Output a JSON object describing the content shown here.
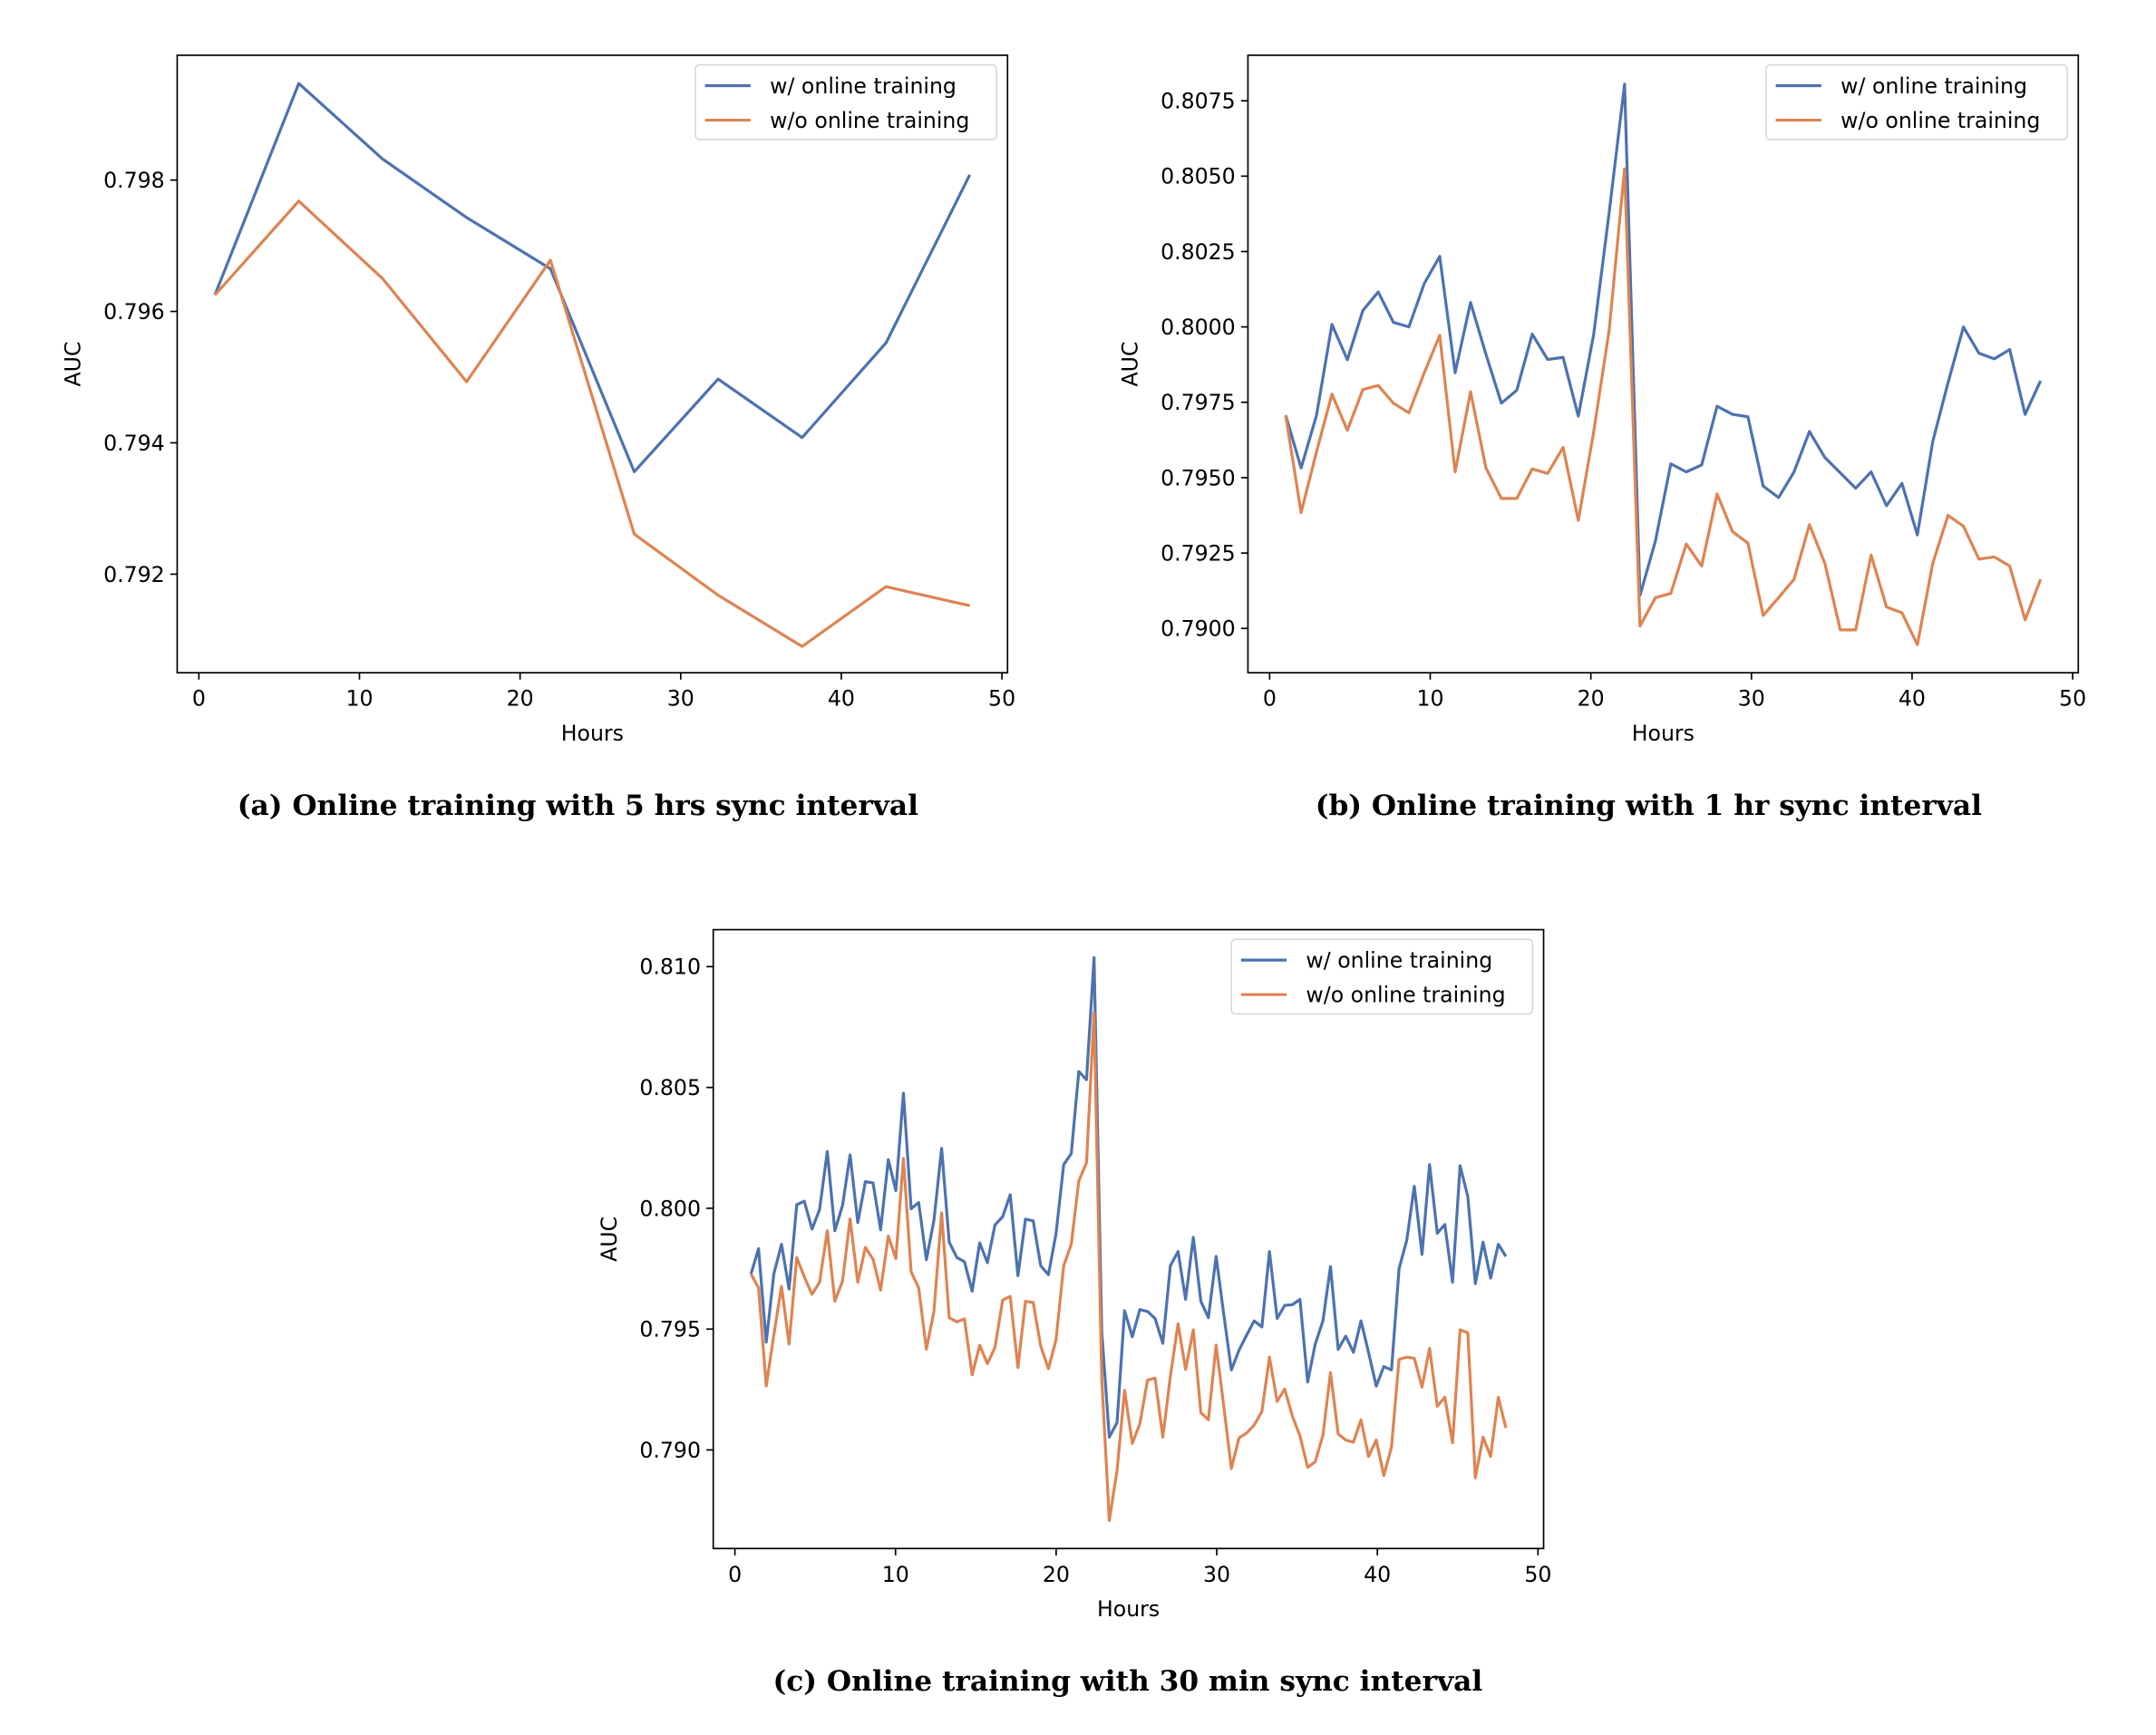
{
  "colors": {
    "w_online": "#4c72b0",
    "wo_online": "#dd8452"
  },
  "chart_data": [
    {
      "type": "line",
      "caption": "(a) Online training with 5 hrs sync interval",
      "xlabel": "Hours",
      "ylabel": "AUC",
      "xlim": [
        -1.35,
        50.35
      ],
      "ylim": [
        0.7905,
        0.7999
      ],
      "xticks": [
        "0",
        "10",
        "20",
        "30",
        "40",
        "50"
      ],
      "xtick_values": [
        0,
        10,
        20,
        30,
        40,
        50
      ],
      "yticks": [
        "0.792",
        "0.794",
        "0.796",
        "0.798"
      ],
      "ytick_values": [
        0.792,
        0.794,
        0.796,
        0.798
      ],
      "legend_position": "top-right",
      "grid": false,
      "x": [
        1,
        6.22,
        11.44,
        16.67,
        21.89,
        27.11,
        32.33,
        37.56,
        42.78,
        48
      ],
      "series": [
        {
          "name": "w/ online training",
          "color": "#4c72b0",
          "values": [
            0.79625,
            0.79947,
            0.79832,
            0.79743,
            0.79665,
            0.79356,
            0.79497,
            0.79408,
            0.79552,
            0.79808
          ]
        },
        {
          "name": "w/o online training",
          "color": "#dd8452",
          "values": [
            0.79625,
            0.79768,
            0.7965,
            0.79493,
            0.79678,
            0.79261,
            0.79168,
            0.7909,
            0.79181,
            0.79152
          ]
        }
      ]
    },
    {
      "type": "line",
      "caption": "(b) Online training with 1 hr sync interval",
      "xlabel": "Hours",
      "ylabel": "AUC",
      "xlim": [
        -1.35,
        50.35
      ],
      "ylim": [
        0.78853,
        0.80901
      ],
      "xticks": [
        "0",
        "10",
        "20",
        "30",
        "40",
        "50"
      ],
      "xtick_values": [
        0,
        10,
        20,
        30,
        40,
        50
      ],
      "yticks": [
        "0.7900",
        "0.7925",
        "0.7950",
        "0.7975",
        "0.8000",
        "0.8025",
        "0.8050",
        "0.8075"
      ],
      "ytick_values": [
        0.79,
        0.7925,
        0.795,
        0.7975,
        0.8,
        0.8025,
        0.805,
        0.8075
      ],
      "legend_position": "top-right",
      "grid": false,
      "x": [
        1,
        1.96,
        2.92,
        3.88,
        4.84,
        5.8,
        6.76,
        7.71,
        8.67,
        9.63,
        10.59,
        11.55,
        12.51,
        13.47,
        14.43,
        15.39,
        16.35,
        17.31,
        18.27,
        19.22,
        20.18,
        21.14,
        22.1,
        23.06,
        24.02,
        24.98,
        25.94,
        26.9,
        27.86,
        28.82,
        29.78,
        30.73,
        31.69,
        32.65,
        33.61,
        34.57,
        35.53,
        36.49,
        37.45,
        38.41,
        39.37,
        40.33,
        41.29,
        42.24,
        43.2,
        44.16,
        45.12,
        46.08,
        47.04,
        48
      ],
      "series": [
        {
          "name": "w/ online training",
          "color": "#4c72b0",
          "values": [
            0.79707,
            0.79532,
            0.79707,
            0.80008,
            0.79891,
            0.80054,
            0.80116,
            0.80015,
            0.8,
            0.80144,
            0.80234,
            0.79848,
            0.80081,
            0.79909,
            0.79747,
            0.7979,
            0.79976,
            0.79892,
            0.79899,
            0.79704,
            0.79976,
            0.80379,
            0.80805,
            0.79109,
            0.7929,
            0.79546,
            0.79519,
            0.79542,
            0.79737,
            0.7971,
            0.79702,
            0.79472,
            0.79434,
            0.79519,
            0.79653,
            0.79567,
            0.79516,
            0.79465,
            0.79519,
            0.79407,
            0.79481,
            0.7931,
            0.7962,
            0.79815,
            0.8,
            0.79913,
            0.79894,
            0.79925,
            0.7971,
            0.79821
          ]
        },
        {
          "name": "w/o online training",
          "color": "#dd8452",
          "values": [
            0.79707,
            0.79384,
            0.79586,
            0.79777,
            0.79657,
            0.79792,
            0.79806,
            0.79747,
            0.79715,
            0.79848,
            0.79972,
            0.79519,
            0.79785,
            0.79532,
            0.79431,
            0.79431,
            0.79529,
            0.79514,
            0.796,
            0.79358,
            0.79653,
            0.79989,
            0.80524,
            0.79008,
            0.79102,
            0.79116,
            0.7928,
            0.79207,
            0.79446,
            0.79321,
            0.79283,
            0.79043,
            0.79102,
            0.79163,
            0.79344,
            0.79216,
            0.78995,
            0.78995,
            0.79243,
            0.79071,
            0.79052,
            0.78946,
            0.79216,
            0.79375,
            0.79339,
            0.7923,
            0.79237,
            0.79207,
            0.79028,
            0.79163
          ]
        }
      ]
    },
    {
      "type": "line",
      "caption": "(c) Online training with 30 min sync interval",
      "xlabel": "Hours",
      "ylabel": "AUC",
      "xlim": [
        -1.35,
        50.35
      ],
      "ylim": [
        0.78592,
        0.81153
      ],
      "xticks": [
        "0",
        "10",
        "20",
        "30",
        "40",
        "50"
      ],
      "xtick_values": [
        0,
        10,
        20,
        30,
        40,
        50
      ],
      "yticks": [
        "0.790",
        "0.795",
        "0.800",
        "0.805",
        "0.810"
      ],
      "ytick_values": [
        0.79,
        0.795,
        0.8,
        0.805,
        0.81
      ],
      "legend_position": "top-right",
      "grid": false,
      "x": [
        1,
        1.47,
        1.95,
        2.42,
        2.9,
        3.37,
        3.85,
        4.32,
        4.8,
        5.27,
        5.75,
        6.22,
        6.7,
        7.17,
        7.65,
        8.12,
        8.6,
        9.07,
        9.55,
        10.02,
        10.49,
        10.97,
        11.44,
        11.92,
        12.39,
        12.87,
        13.34,
        13.82,
        14.29,
        14.77,
        15.24,
        15.72,
        16.19,
        16.67,
        17.14,
        17.62,
        18.09,
        18.57,
        19.04,
        19.52,
        19.99,
        20.47,
        20.94,
        21.41,
        21.89,
        22.36,
        22.84,
        23.31,
        23.79,
        24.26,
        24.74,
        25.21,
        25.69,
        26.16,
        26.64,
        27.11,
        27.59,
        28.06,
        28.54,
        29.01,
        29.48,
        29.96,
        30.43,
        30.91,
        31.38,
        31.86,
        32.33,
        32.81,
        33.28,
        33.76,
        34.23,
        34.71,
        35.18,
        35.66,
        36.13,
        36.61,
        37.08,
        37.56,
        38.03,
        38.51,
        38.98,
        39.45,
        39.93,
        40.4,
        40.88,
        41.35,
        41.83,
        42.3,
        42.78,
        43.25,
        43.73,
        44.2,
        44.68,
        45.15,
        45.63,
        46.1,
        46.58,
        47.05,
        47.53,
        48
      ],
      "series": [
        {
          "name": "w/ online training",
          "color": "#4c72b0",
          "values": [
            0.79728,
            0.79833,
            0.79446,
            0.79728,
            0.79851,
            0.79666,
            0.80015,
            0.80029,
            0.79914,
            0.79995,
            0.80235,
            0.79907,
            0.80012,
            0.80221,
            0.79941,
            0.8011,
            0.80105,
            0.79911,
            0.80201,
            0.80073,
            0.80476,
            0.79998,
            0.80024,
            0.79787,
            0.7995,
            0.80248,
            0.7986,
            0.79796,
            0.79779,
            0.79657,
            0.79857,
            0.79775,
            0.79931,
            0.79965,
            0.80056,
            0.79721,
            0.79955,
            0.79948,
            0.79762,
            0.79725,
            0.79894,
            0.80181,
            0.80226,
            0.80566,
            0.80532,
            0.81037,
            0.79488,
            0.79053,
            0.79113,
            0.79576,
            0.79468,
            0.79581,
            0.79573,
            0.79544,
            0.79441,
            0.79762,
            0.79821,
            0.79623,
            0.7988,
            0.79615,
            0.79547,
            0.79801,
            0.79564,
            0.79331,
            0.79412,
            0.79475,
            0.79534,
            0.79509,
            0.79821,
            0.79544,
            0.79598,
            0.79601,
            0.79623,
            0.79281,
            0.79438,
            0.79534,
            0.79759,
            0.79416,
            0.79471,
            0.79404,
            0.79534,
            0.79404,
            0.79264,
            0.79345,
            0.79331,
            0.7975,
            0.79868,
            0.80091,
            0.79809,
            0.80181,
            0.79897,
            0.79933,
            0.79694,
            0.80176,
            0.80049,
            0.79688,
            0.7986,
            0.79711,
            0.79851,
            0.79801
          ]
        },
        {
          "name": "w/o online training",
          "color": "#dd8452",
          "values": [
            0.79728,
            0.79671,
            0.79265,
            0.79475,
            0.79677,
            0.79438,
            0.79796,
            0.79716,
            0.79644,
            0.79694,
            0.79907,
            0.79615,
            0.79699,
            0.79956,
            0.79694,
            0.79838,
            0.79789,
            0.79661,
            0.79885,
            0.79792,
            0.80206,
            0.79737,
            0.79671,
            0.79417,
            0.79573,
            0.79981,
            0.79547,
            0.7953,
            0.79542,
            0.79311,
            0.79433,
            0.79357,
            0.79424,
            0.7962,
            0.79635,
            0.79341,
            0.79615,
            0.7961,
            0.79429,
            0.79336,
            0.79455,
            0.79762,
            0.79851,
            0.80113,
            0.80189,
            0.80809,
            0.79294,
            0.78708,
            0.78914,
            0.79247,
            0.79027,
            0.79108,
            0.79289,
            0.79297,
            0.79053,
            0.79303,
            0.79522,
            0.79333,
            0.79497,
            0.79154,
            0.79125,
            0.79434,
            0.79184,
            0.78923,
            0.79049,
            0.7907,
            0.79103,
            0.79159,
            0.79384,
            0.79201,
            0.79252,
            0.79139,
            0.79058,
            0.78928,
            0.78951,
            0.79061,
            0.7932,
            0.79066,
            0.79041,
            0.79032,
            0.79125,
            0.78973,
            0.79041,
            0.78894,
            0.79012,
            0.79375,
            0.79384,
            0.79379,
            0.7926,
            0.79421,
            0.79181,
            0.79218,
            0.79029,
            0.79497,
            0.79485,
            0.78885,
            0.79053,
            0.78973,
            0.79218,
            0.79091
          ]
        }
      ]
    }
  ]
}
